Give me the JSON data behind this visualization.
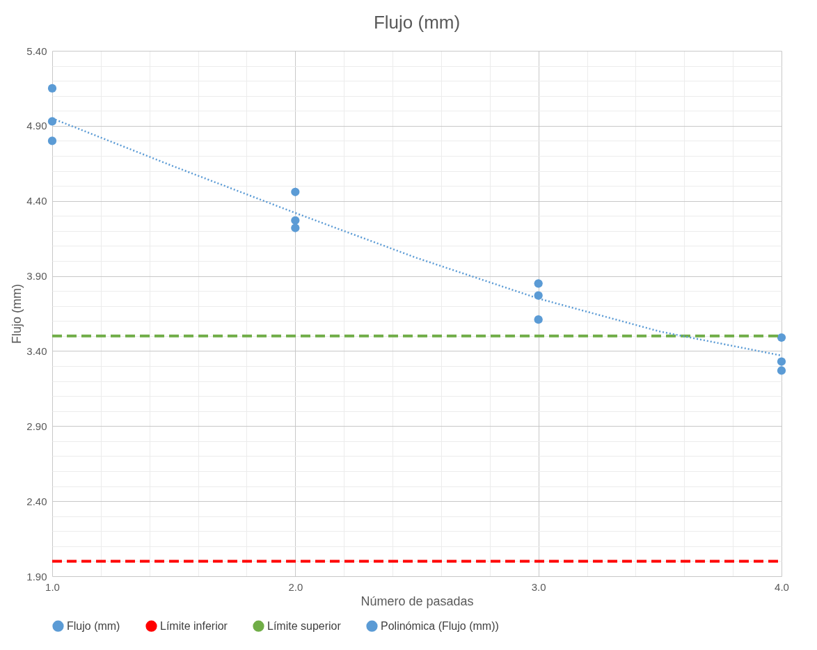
{
  "chart_data": {
    "type": "scatter",
    "title": "Flujo (mm)",
    "xlabel": "Número de pasadas",
    "ylabel": "Flujo (mm)",
    "xlim": [
      1.0,
      4.0
    ],
    "ylim": [
      1.9,
      5.4
    ],
    "xticks": [
      {
        "value": 1.0,
        "label": "1.0"
      },
      {
        "value": 1.2,
        "label": null
      },
      {
        "value": 1.4,
        "label": null
      },
      {
        "value": 1.6,
        "label": null
      },
      {
        "value": 1.8,
        "label": null
      },
      {
        "value": 2.0,
        "label": "2.0"
      },
      {
        "value": 2.2,
        "label": null
      },
      {
        "value": 2.4,
        "label": null
      },
      {
        "value": 2.6,
        "label": null
      },
      {
        "value": 2.8,
        "label": null
      },
      {
        "value": 3.0,
        "label": "3.0"
      },
      {
        "value": 3.2,
        "label": null
      },
      {
        "value": 3.4,
        "label": null
      },
      {
        "value": 3.6,
        "label": null
      },
      {
        "value": 3.8,
        "label": null
      },
      {
        "value": 4.0,
        "label": "4.0"
      }
    ],
    "yticks": [
      {
        "value": 1.9,
        "label": "1.90"
      },
      {
        "value": 2.0,
        "label": null
      },
      {
        "value": 2.1,
        "label": null
      },
      {
        "value": 2.2,
        "label": null
      },
      {
        "value": 2.3,
        "label": null
      },
      {
        "value": 2.4,
        "label": "2.40"
      },
      {
        "value": 2.5,
        "label": null
      },
      {
        "value": 2.6,
        "label": null
      },
      {
        "value": 2.7,
        "label": null
      },
      {
        "value": 2.8,
        "label": null
      },
      {
        "value": 2.9,
        "label": "2.90"
      },
      {
        "value": 3.0,
        "label": null
      },
      {
        "value": 3.1,
        "label": null
      },
      {
        "value": 3.2,
        "label": null
      },
      {
        "value": 3.3,
        "label": null
      },
      {
        "value": 3.4,
        "label": "3.40"
      },
      {
        "value": 3.5,
        "label": null
      },
      {
        "value": 3.6,
        "label": null
      },
      {
        "value": 3.7,
        "label": null
      },
      {
        "value": 3.8,
        "label": null
      },
      {
        "value": 3.9,
        "label": "3.90"
      },
      {
        "value": 4.0,
        "label": null
      },
      {
        "value": 4.1,
        "label": null
      },
      {
        "value": 4.2,
        "label": null
      },
      {
        "value": 4.3,
        "label": null
      },
      {
        "value": 4.4,
        "label": "4.40"
      },
      {
        "value": 4.5,
        "label": null
      },
      {
        "value": 4.6,
        "label": null
      },
      {
        "value": 4.7,
        "label": null
      },
      {
        "value": 4.8,
        "label": null
      },
      {
        "value": 4.9,
        "label": "4.90"
      },
      {
        "value": 5.0,
        "label": null
      },
      {
        "value": 5.1,
        "label": null
      },
      {
        "value": 5.2,
        "label": null
      },
      {
        "value": 5.3,
        "label": null
      },
      {
        "value": 5.4,
        "label": "5.40"
      }
    ],
    "grid": true,
    "legend": "bottom",
    "series": [
      {
        "name": "Flujo (mm)",
        "marker": "circle",
        "color": "#5b9bd5",
        "x": [
          1,
          1,
          1,
          2,
          2,
          2,
          3,
          3,
          3,
          4,
          4,
          4
        ],
        "values": [
          5.15,
          4.93,
          4.8,
          4.46,
          4.27,
          4.22,
          3.85,
          3.77,
          3.61,
          3.49,
          3.33,
          3.27
        ]
      },
      {
        "name": "Límite inferior",
        "type": "line",
        "line_style": "dashed",
        "color": "#ff0000",
        "x": [
          1,
          4
        ],
        "values": [
          2.0,
          2.0
        ]
      },
      {
        "name": "Límite superior",
        "type": "line",
        "line_style": "dashed",
        "color": "#70ad47",
        "x": [
          1,
          4
        ],
        "values": [
          3.5,
          3.5
        ]
      },
      {
        "name": "Polinómica (Flujo (mm))",
        "type": "line",
        "line_style": "dotted",
        "color": "#5b9bd5",
        "x": [
          1,
          1.5,
          2,
          2.5,
          3,
          3.5,
          4
        ],
        "values": [
          4.95,
          4.63,
          4.32,
          4.02,
          3.75,
          3.53,
          3.37
        ]
      }
    ]
  }
}
